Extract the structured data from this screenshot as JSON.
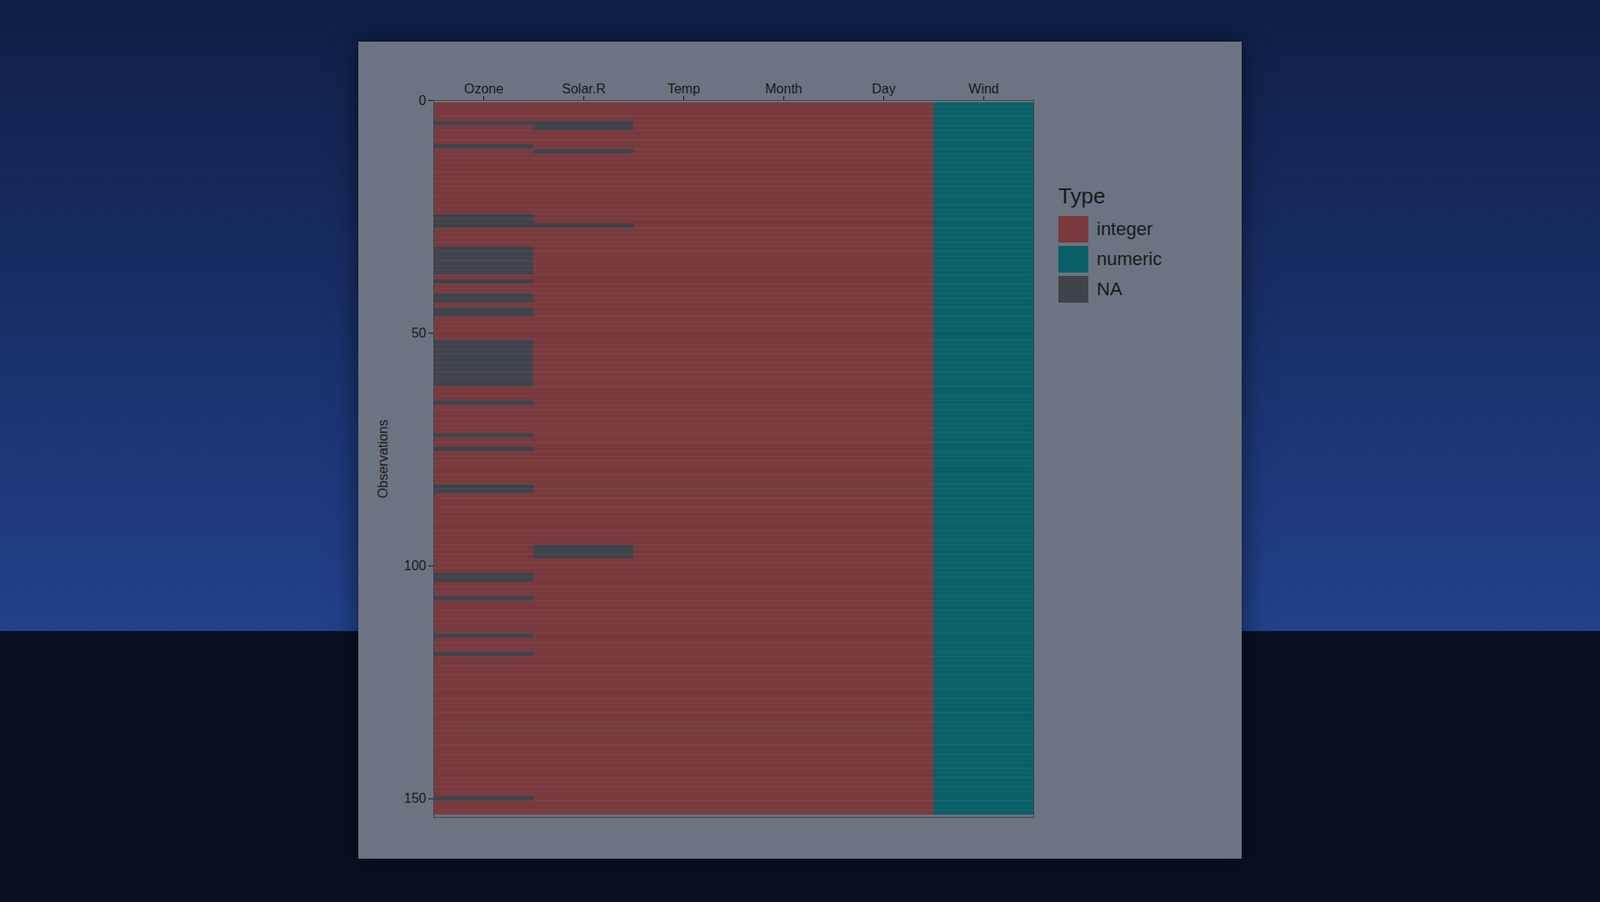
{
  "chart_data": {
    "type": "heatmap",
    "categories": [
      "Ozone",
      "Solar.R",
      "Temp",
      "Month",
      "Day",
      "Wind"
    ],
    "column_types": [
      "integer",
      "integer",
      "integer",
      "integer",
      "integer",
      "numeric"
    ],
    "missing_rows": [
      [
        5,
        10,
        25,
        26,
        27,
        32,
        33,
        34,
        35,
        36,
        37,
        39,
        42,
        43,
        45,
        46,
        52,
        53,
        54,
        55,
        56,
        57,
        58,
        59,
        60,
        61,
        65,
        72,
        75,
        83,
        84,
        102,
        103,
        107,
        115,
        119,
        150
      ],
      [
        5,
        6,
        11,
        27,
        96,
        97,
        98
      ],
      [],
      [],
      [],
      []
    ],
    "observations": 153,
    "y_label": "Observations",
    "ylim": [
      0,
      154
    ],
    "yticks": [
      0,
      50,
      100,
      150
    ],
    "legend_title": "Type",
    "series": [
      {
        "name": "integer",
        "color": "#7a3a3d"
      },
      {
        "name": "numeric",
        "color": "#0a6068"
      },
      {
        "name": "NA",
        "color": "#40434a"
      }
    ],
    "legend": "right"
  }
}
